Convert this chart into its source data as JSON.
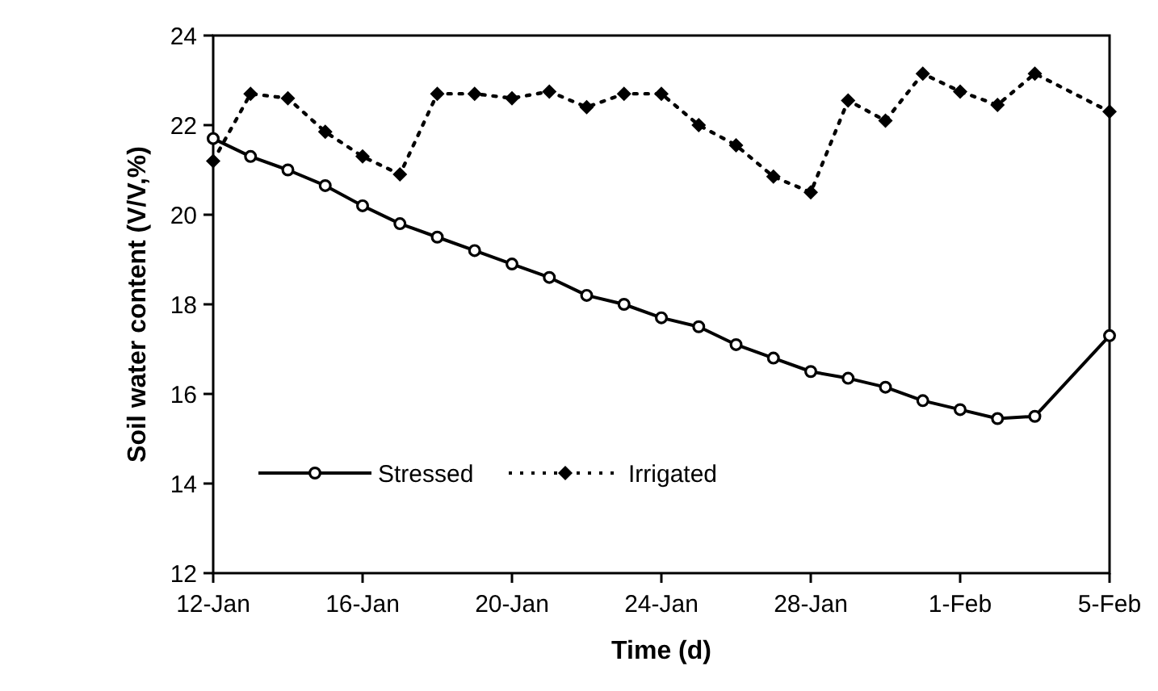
{
  "chart_data": {
    "type": "line",
    "xlabel": "Time (d)",
    "ylabel": "Soil water content (V/V,%)",
    "x": [
      "--01-12",
      "--01-13",
      "--01-14",
      "--01-15",
      "--01-16",
      "--01-17",
      "--01-18",
      "--01-19",
      "--01-20",
      "--01-21",
      "--01-22",
      "--01-23",
      "--01-24",
      "--01-25",
      "--01-26",
      "--01-27",
      "--01-28",
      "--01-29",
      "--01-30",
      "--01-31",
      "--02-01",
      "--02-02",
      "--02-03",
      "--02-05"
    ],
    "series": [
      {
        "name": "Stressed",
        "color": "#000000",
        "marker": "circle",
        "line_style": "solid",
        "values": [
          21.7,
          21.3,
          21.0,
          20.65,
          20.2,
          19.8,
          19.5,
          19.2,
          18.9,
          18.6,
          18.2,
          18.0,
          17.7,
          17.5,
          17.1,
          16.8,
          16.5,
          16.35,
          16.15,
          15.85,
          15.65,
          15.45,
          15.5,
          17.3
        ]
      },
      {
        "name": "Irrigated",
        "color": "#000000",
        "marker": "diamond",
        "line_style": "dotted",
        "values": [
          21.2,
          22.7,
          22.6,
          21.85,
          21.3,
          20.9,
          22.7,
          22.7,
          22.6,
          22.75,
          22.4,
          22.7,
          22.7,
          22.0,
          21.55,
          20.85,
          20.5,
          22.55,
          22.1,
          23.15,
          22.75,
          22.45,
          23.15,
          22.3
        ]
      }
    ],
    "xlim": [
      "--01-12",
      "--02-05"
    ],
    "xticks": [
      {
        "value": "--01-12",
        "label": "12-Jan"
      },
      {
        "value": "--01-16",
        "label": "16-Jan"
      },
      {
        "value": "--01-20",
        "label": "20-Jan"
      },
      {
        "value": "--01-24",
        "label": "24-Jan"
      },
      {
        "value": "--01-28",
        "label": "28-Jan"
      },
      {
        "value": "--02-01",
        "label": "1-Feb"
      },
      {
        "value": "--02-05",
        "label": "5-Feb"
      }
    ],
    "ylim": [
      12,
      24
    ],
    "yticks": [
      12,
      14,
      16,
      18,
      20,
      22,
      24
    ],
    "legend": "bottom left",
    "grid": false
  }
}
